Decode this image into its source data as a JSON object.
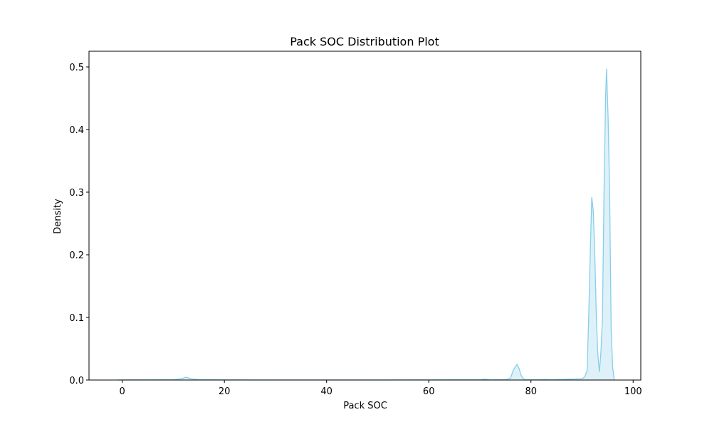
{
  "chart_data": {
    "type": "area",
    "title": "Pack SOC Distribution Plot",
    "xlabel": "Pack SOC",
    "ylabel": "Density",
    "xlim": [
      -6.5,
      101.5
    ],
    "ylim": [
      0,
      0.525
    ],
    "xticks": [
      0,
      20,
      40,
      60,
      80,
      100
    ],
    "yticks": [
      0.0,
      0.1,
      0.2,
      0.3,
      0.4,
      0.5
    ],
    "grid": false,
    "legend": "none",
    "series": [
      {
        "color": "#87ceeb",
        "x": [
          -1,
          0,
          5,
          10,
          11.5,
          12.5,
          13.5,
          15,
          20,
          40,
          60,
          70,
          71,
          72,
          75,
          76,
          76.5,
          77,
          77.3,
          77.7,
          78,
          78.5,
          79,
          80,
          83,
          84,
          90,
          90.5,
          91,
          91.3,
          91.6,
          91.9,
          92.2,
          92.5,
          92.8,
          93.1,
          93.4,
          93.7,
          94.0,
          94.3,
          94.6,
          94.8,
          95.1,
          95.4,
          95.7,
          96.0,
          96.3
        ],
        "y": [
          0,
          0.0002,
          0.0003,
          0.0005,
          0.002,
          0.0045,
          0.002,
          0.0005,
          0.0002,
          0.0001,
          0.0002,
          0.0005,
          0.0015,
          0.0003,
          0.0005,
          0.003,
          0.015,
          0.022,
          0.025,
          0.018,
          0.009,
          0.002,
          0.0005,
          0.0003,
          0.001,
          0.0005,
          0.002,
          0.005,
          0.015,
          0.1,
          0.2,
          0.292,
          0.27,
          0.2,
          0.1,
          0.04,
          0.013,
          0.045,
          0.1,
          0.3,
          0.45,
          0.497,
          0.42,
          0.3,
          0.08,
          0.02,
          0.0
        ]
      }
    ]
  }
}
